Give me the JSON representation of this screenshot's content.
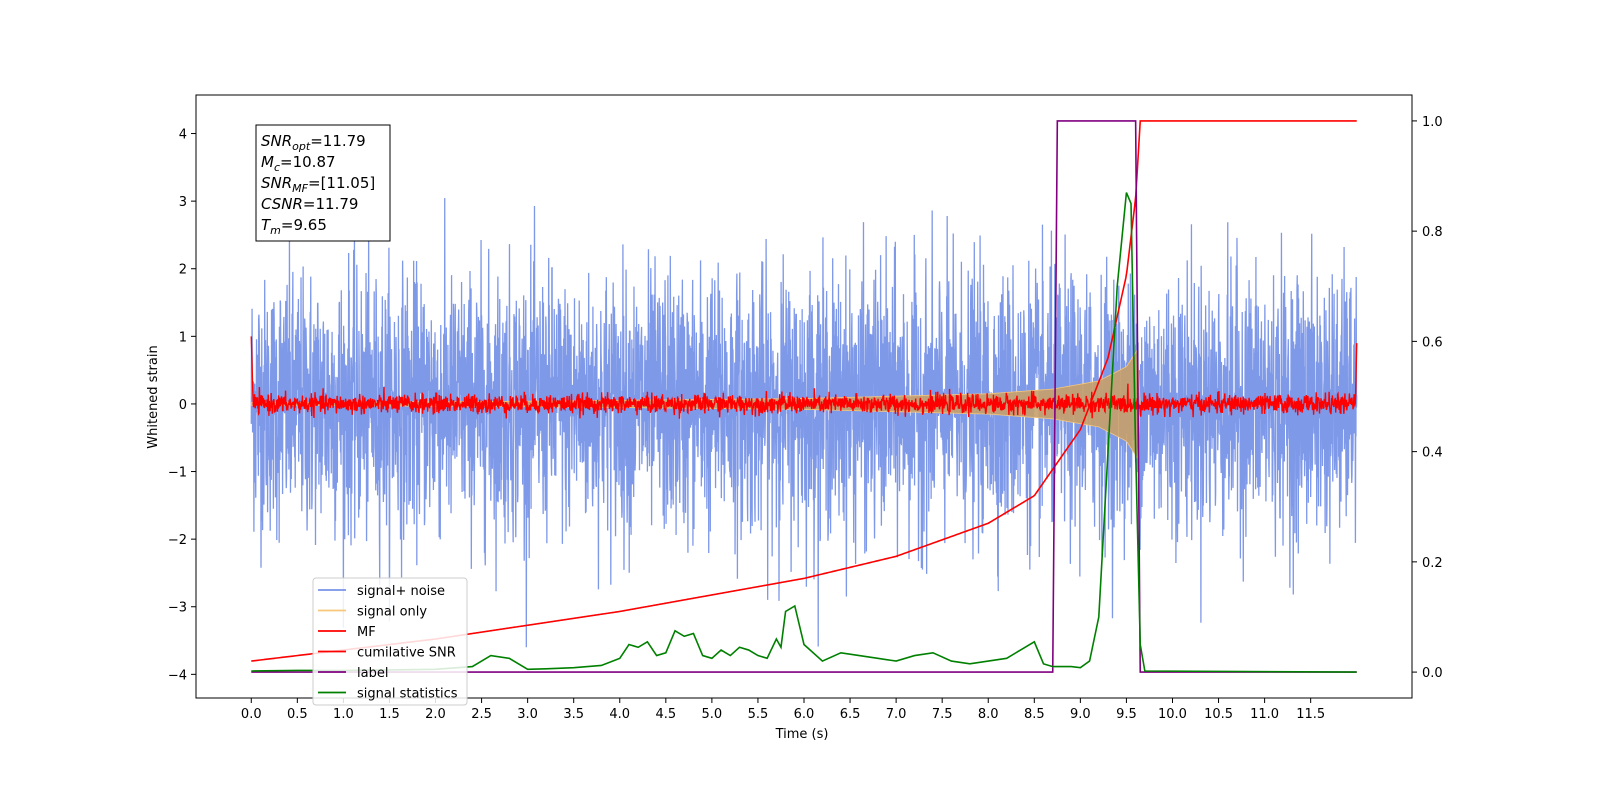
{
  "chart_data": {
    "type": "line",
    "title": "",
    "xlabel": "Time (s)",
    "ylabel": "Whitened strain",
    "xlim": [
      -0.6,
      12.6
    ],
    "ylim": [
      -4.35,
      4.57
    ],
    "ylim_right": [
      -0.047,
      1.047
    ],
    "x_ticks": [
      "0.0",
      "0.5",
      "1.0",
      "1.5",
      "2.0",
      "2.5",
      "3.0",
      "3.5",
      "4.0",
      "4.5",
      "5.0",
      "5.5",
      "6.0",
      "6.5",
      "7.0",
      "7.5",
      "8.0",
      "8.5",
      "9.0",
      "9.5",
      "10.0",
      "10.5",
      "11.0",
      "11.5"
    ],
    "y_ticks_left": [
      "4",
      "3",
      "2",
      "1",
      "0",
      "−1",
      "−2",
      "−3",
      "−4"
    ],
    "y_ticks_right": [
      "1.0",
      "0.8",
      "0.6",
      "0.4",
      "0.2",
      "0.0"
    ],
    "grid": false,
    "legend_position": "lower-left",
    "series": [
      {
        "name": "signal+ noise",
        "axis": "left",
        "color": "#7893e8",
        "description_range": [
          -3.6,
          4.0
        ],
        "x_range": [
          0.0,
          12.0
        ]
      },
      {
        "name": "signal only",
        "axis": "left",
        "color": "#f6c77a",
        "envelope_x": [
          0.0,
          3.0,
          6.0,
          8.0,
          8.7,
          9.2,
          9.5,
          9.62,
          9.65
        ],
        "envelope_amp": [
          0.02,
          0.04,
          0.08,
          0.15,
          0.22,
          0.34,
          0.55,
          0.8,
          0.0
        ]
      },
      {
        "name": "MF",
        "axis": "left",
        "color": "#ff0000",
        "x_range": [
          0.0,
          12.0
        ],
        "base": 0.0,
        "noise_amp": 0.12
      },
      {
        "name": "cumilative SNR",
        "axis": "right",
        "color": "#ff0000",
        "x": [
          0.0,
          1.0,
          2.0,
          3.0,
          4.0,
          5.0,
          6.0,
          7.0,
          8.0,
          8.5,
          9.0,
          9.3,
          9.5,
          9.6,
          9.65,
          12.0
        ],
        "values": [
          0.02,
          0.04,
          0.06,
          0.085,
          0.11,
          0.14,
          0.17,
          0.21,
          0.27,
          0.32,
          0.44,
          0.57,
          0.72,
          0.86,
          1.0,
          1.0
        ]
      },
      {
        "name": "label",
        "axis": "right",
        "color": "#800080",
        "x": [
          0.0,
          8.7,
          8.75,
          9.6,
          9.65,
          12.0
        ],
        "values": [
          0.0,
          0.0,
          1.0,
          1.0,
          0.0,
          0.0
        ]
      },
      {
        "name": "signal statistics",
        "axis": "right",
        "color": "#008000",
        "x": [
          0.0,
          0.5,
          1.0,
          1.5,
          2.0,
          2.4,
          2.6,
          2.8,
          3.0,
          3.2,
          3.5,
          3.8,
          4.0,
          4.1,
          4.2,
          4.3,
          4.4,
          4.5,
          4.6,
          4.7,
          4.8,
          4.9,
          5.0,
          5.1,
          5.2,
          5.3,
          5.4,
          5.5,
          5.6,
          5.7,
          5.75,
          5.8,
          5.9,
          6.0,
          6.2,
          6.4,
          6.6,
          6.8,
          7.0,
          7.2,
          7.4,
          7.6,
          7.8,
          8.0,
          8.2,
          8.4,
          8.5,
          8.6,
          8.7,
          8.9,
          9.0,
          9.1,
          9.2,
          9.3,
          9.4,
          9.5,
          9.55,
          9.6,
          9.65,
          9.7,
          12.0
        ],
        "values": [
          0.002,
          0.003,
          0.003,
          0.004,
          0.005,
          0.01,
          0.03,
          0.025,
          0.005,
          0.006,
          0.008,
          0.012,
          0.025,
          0.05,
          0.045,
          0.055,
          0.03,
          0.035,
          0.075,
          0.065,
          0.07,
          0.03,
          0.025,
          0.04,
          0.03,
          0.045,
          0.04,
          0.03,
          0.025,
          0.06,
          0.045,
          0.11,
          0.12,
          0.05,
          0.02,
          0.035,
          0.03,
          0.025,
          0.02,
          0.03,
          0.035,
          0.02,
          0.015,
          0.02,
          0.025,
          0.045,
          0.055,
          0.015,
          0.01,
          0.01,
          0.008,
          0.02,
          0.1,
          0.4,
          0.7,
          0.87,
          0.85,
          0.4,
          0.05,
          0.002,
          0.0
        ]
      }
    ],
    "annotation": [
      {
        "base": "SNR",
        "sub": "opt",
        "rest": "=11.79"
      },
      {
        "base": "M",
        "sub": "c",
        "rest": "=10.87"
      },
      {
        "base": "SNR",
        "sub": "MF",
        "rest": "=[11.05]"
      },
      {
        "base": "CSNR",
        "sub": "",
        "rest": "=11.79"
      },
      {
        "base": "T",
        "sub": "m",
        "rest": "=9.65"
      }
    ]
  }
}
